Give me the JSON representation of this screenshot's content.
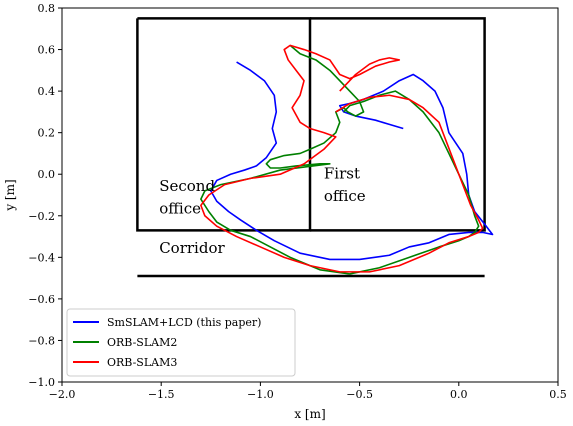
{
  "chart_data": {
    "type": "line",
    "xlabel": "x [m]",
    "ylabel": "y [m]",
    "xlim": [
      -2.0,
      0.5
    ],
    "ylim": [
      -1.0,
      0.8
    ],
    "x_ticks": [
      -2.0,
      -1.5,
      -1.0,
      -0.5,
      0.0,
      0.5
    ],
    "x_tick_labels": [
      "−2.0",
      "−1.5",
      "−1.0",
      "−0.5",
      "0.0",
      "0.5"
    ],
    "y_ticks": [
      -1.0,
      -0.8,
      -0.6,
      -0.4,
      -0.2,
      0.0,
      0.2,
      0.4,
      0.6,
      0.8
    ],
    "y_tick_labels": [
      "−1.0",
      "−0.8",
      "−0.6",
      "−0.4",
      "−0.2",
      "0.0",
      "0.2",
      "0.4",
      "0.6",
      "0.8"
    ],
    "grid": false,
    "legend_position": "bottom-left",
    "walls": [
      {
        "x": [
          -1.62,
          -0.75,
          -0.75,
          -1.62,
          -1.62
        ],
        "y": [
          0.75,
          0.75,
          -0.27,
          -0.27,
          0.75
        ]
      },
      {
        "x": [
          -0.75,
          0.13,
          0.13,
          -0.75
        ],
        "y": [
          0.75,
          0.75,
          -0.27,
          -0.27
        ]
      },
      {
        "x": [
          -1.62,
          0.13
        ],
        "y": [
          -0.49,
          -0.49
        ]
      }
    ],
    "annotations": [
      {
        "text": "Second",
        "x": -1.51,
        "y": -0.08
      },
      {
        "text": "office",
        "x": -1.51,
        "y": -0.19
      },
      {
        "text": "First",
        "x": -0.68,
        "y": -0.02
      },
      {
        "text": "office",
        "x": -0.68,
        "y": -0.13
      },
      {
        "text": "Corridor",
        "x": -1.51,
        "y": -0.38
      }
    ],
    "series": [
      {
        "name": "SmSLAM+LCD (this paper)",
        "color": "#0000ff",
        "x": [
          -1.12,
          -1.05,
          -0.98,
          -0.93,
          -0.92,
          -0.94,
          -0.92,
          -0.97,
          -1.02,
          -1.08,
          -1.15,
          -1.22,
          -1.25,
          -1.22,
          -1.16,
          -1.1,
          -1.02,
          -0.93,
          -0.8,
          -0.65,
          -0.5,
          -0.35,
          -0.25,
          -0.15,
          -0.05,
          0.05,
          0.12,
          0.17,
          0.13,
          0.08,
          0.05,
          0.04,
          0.02,
          -0.05,
          -0.08,
          -0.12,
          -0.18,
          -0.23,
          -0.3,
          -0.38,
          -0.48,
          -0.55,
          -0.6,
          -0.58,
          -0.52,
          -0.42,
          -0.35,
          -0.28
        ],
        "y": [
          0.54,
          0.5,
          0.45,
          0.38,
          0.3,
          0.22,
          0.15,
          0.08,
          0.04,
          0.02,
          0.0,
          -0.03,
          -0.08,
          -0.13,
          -0.18,
          -0.22,
          -0.27,
          -0.32,
          -0.38,
          -0.41,
          -0.41,
          -0.39,
          -0.35,
          -0.33,
          -0.29,
          -0.28,
          -0.28,
          -0.29,
          -0.24,
          -0.18,
          -0.1,
          0.0,
          0.1,
          0.2,
          0.32,
          0.4,
          0.45,
          0.48,
          0.45,
          0.4,
          0.36,
          0.34,
          0.33,
          0.3,
          0.28,
          0.26,
          0.24,
          0.22
        ]
      },
      {
        "name": "ORB-SLAM2",
        "color": "#008000",
        "x": [
          -0.85,
          -0.8,
          -0.72,
          -0.65,
          -0.6,
          -0.55,
          -0.5,
          -0.48,
          -0.52,
          -0.56,
          -0.58,
          -0.62,
          -0.6,
          -0.62,
          -0.68,
          -0.75,
          -0.8,
          -0.88,
          -0.95,
          -0.97,
          -0.95,
          -0.9,
          -0.82,
          -0.7,
          -0.65,
          -0.9,
          -1.05,
          -1.2,
          -1.28,
          -1.3,
          -1.26,
          -1.22,
          -1.15,
          -1.05,
          -0.95,
          -0.85,
          -0.7,
          -0.55,
          -0.4,
          -0.25,
          -0.1,
          0.0,
          0.05,
          0.08,
          0.1,
          0.08,
          0.05,
          0.0,
          -0.05,
          -0.1,
          -0.18,
          -0.25,
          -0.32,
          -0.4,
          -0.48,
          -0.55,
          -0.58
        ],
        "y": [
          0.62,
          0.58,
          0.55,
          0.5,
          0.45,
          0.4,
          0.35,
          0.3,
          0.28,
          0.3,
          0.32,
          0.3,
          0.25,
          0.2,
          0.15,
          0.12,
          0.1,
          0.09,
          0.07,
          0.05,
          0.03,
          0.03,
          0.04,
          0.05,
          0.05,
          0.02,
          -0.02,
          -0.05,
          -0.08,
          -0.12,
          -0.18,
          -0.23,
          -0.27,
          -0.3,
          -0.35,
          -0.4,
          -0.46,
          -0.48,
          -0.45,
          -0.4,
          -0.35,
          -0.32,
          -0.3,
          -0.28,
          -0.25,
          -0.2,
          -0.1,
          0.0,
          0.1,
          0.2,
          0.3,
          0.36,
          0.4,
          0.38,
          0.35,
          0.33,
          0.3
        ]
      },
      {
        "name": "ORB-SLAM3",
        "color": "#ff0000",
        "x": [
          -0.6,
          -0.52,
          -0.45,
          -0.4,
          -0.35,
          -0.3,
          -0.35,
          -0.42,
          -0.5,
          -0.55,
          -0.6,
          -0.65,
          -0.72,
          -0.78,
          -0.85,
          -0.88,
          -0.86,
          -0.82,
          -0.78,
          -0.8,
          -0.84,
          -0.8,
          -0.75,
          -0.68,
          -0.62,
          -0.68,
          -0.78,
          -0.9,
          -1.05,
          -1.18,
          -1.26,
          -1.3,
          -1.28,
          -1.22,
          -1.12,
          -1.0,
          -0.88,
          -0.75,
          -0.6,
          -0.45,
          -0.3,
          -0.15,
          -0.05,
          0.05,
          0.1,
          0.12,
          0.1,
          0.06,
          0.02,
          -0.02,
          -0.06,
          -0.1,
          -0.18,
          -0.25,
          -0.35,
          -0.45,
          -0.55,
          -0.62
        ],
        "y": [
          0.4,
          0.48,
          0.53,
          0.55,
          0.56,
          0.55,
          0.54,
          0.52,
          0.48,
          0.46,
          0.48,
          0.55,
          0.58,
          0.6,
          0.62,
          0.6,
          0.55,
          0.5,
          0.45,
          0.38,
          0.32,
          0.25,
          0.22,
          0.2,
          0.18,
          0.12,
          0.05,
          0.0,
          -0.02,
          -0.05,
          -0.1,
          -0.15,
          -0.2,
          -0.25,
          -0.3,
          -0.35,
          -0.4,
          -0.44,
          -0.47,
          -0.47,
          -0.44,
          -0.38,
          -0.33,
          -0.3,
          -0.28,
          -0.26,
          -0.22,
          -0.15,
          -0.05,
          0.05,
          0.15,
          0.25,
          0.32,
          0.36,
          0.38,
          0.37,
          0.34,
          0.3
        ]
      }
    ]
  }
}
